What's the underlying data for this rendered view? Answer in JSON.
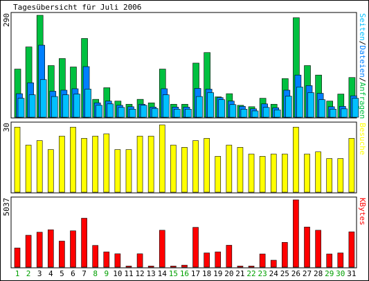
{
  "title": "Tagesübersicht für Juli 2006",
  "colors": {
    "hits": "#00c040",
    "files": "#0080ff",
    "pages": "#00c0ff",
    "visits": "#ffff00",
    "kbytes": "#ff0000",
    "weekday_label": "#008000",
    "weekend_label": "#00a000"
  },
  "chart_data": [
    {
      "type": "bar",
      "panel": "requests",
      "max_label": "290",
      "right_label_parts": [
        {
          "text": "Seiten",
          "series": "pages"
        },
        {
          "text": "/",
          "series": null
        },
        {
          "text": "Dateien",
          "series": "files"
        },
        {
          "text": "/",
          "series": null
        },
        {
          "text": "Anfragen",
          "series": "hits"
        }
      ],
      "ylim": [
        0,
        290
      ],
      "categories": [
        "1",
        "2",
        "3",
        "4",
        "5",
        "6",
        "7",
        "8",
        "9",
        "10",
        "11",
        "12",
        "13",
        "14",
        "15",
        "16",
        "17",
        "18",
        "19",
        "20",
        "21",
        "22",
        "23",
        "24",
        "25",
        "26",
        "27",
        "28",
        "29",
        "30",
        "31"
      ],
      "series": [
        {
          "name": "Anfragen",
          "key": "hits",
          "values": [
            137,
            200,
            290,
            147,
            167,
            143,
            224,
            51,
            84,
            46,
            37,
            51,
            41,
            137,
            37,
            37,
            154,
            184,
            58,
            67,
            34,
            30,
            54,
            37,
            110,
            283,
            147,
            120,
            46,
            66,
            113
          ]
        },
        {
          "name": "Dateien",
          "key": "files",
          "values": [
            67,
            98,
            205,
            74,
            77,
            81,
            144,
            41,
            46,
            34,
            30,
            37,
            29,
            81,
            29,
            29,
            82,
            80,
            56,
            46,
            31,
            24,
            38,
            27,
            77,
            120,
            90,
            68,
            30,
            31,
            61
          ]
        },
        {
          "name": "Seiten",
          "key": "pages",
          "values": [
            54,
            64,
            107,
            59,
            64,
            66,
            80,
            34,
            38,
            28,
            23,
            34,
            25,
            64,
            23,
            23,
            59,
            70,
            50,
            36,
            23,
            18,
            28,
            21,
            60,
            86,
            70,
            50,
            23,
            24,
            54
          ]
        }
      ]
    },
    {
      "type": "bar",
      "panel": "visits",
      "max_label": "30",
      "right_label": "Besuche",
      "ylim": [
        0,
        30
      ],
      "categories": [
        "1",
        "2",
        "3",
        "4",
        "5",
        "6",
        "7",
        "8",
        "9",
        "10",
        "11",
        "12",
        "13",
        "14",
        "15",
        "16",
        "17",
        "18",
        "19",
        "20",
        "21",
        "22",
        "23",
        "24",
        "25",
        "26",
        "27",
        "28",
        "29",
        "30",
        "31"
      ],
      "series": [
        {
          "name": "Besuche",
          "key": "visits",
          "values": [
            29,
            21,
            23,
            19,
            25,
            29,
            24,
            25,
            26,
            19,
            19,
            25,
            25,
            30,
            21,
            20,
            23,
            24,
            16,
            21,
            20,
            17,
            16,
            17,
            17,
            29,
            17,
            18,
            15,
            15,
            24
          ]
        }
      ]
    },
    {
      "type": "bar",
      "panel": "kbytes",
      "max_label": "5037",
      "right_label": "KBytes",
      "ylim": [
        0,
        5037
      ],
      "categories": [
        "1",
        "2",
        "3",
        "4",
        "5",
        "6",
        "7",
        "8",
        "9",
        "10",
        "11",
        "12",
        "13",
        "14",
        "15",
        "16",
        "17",
        "18",
        "19",
        "20",
        "21",
        "22",
        "23",
        "24",
        "25",
        "26",
        "27",
        "28",
        "29",
        "30",
        "31"
      ],
      "series": [
        {
          "name": "KBytes",
          "key": "kbytes",
          "values": [
            1431,
            2387,
            2614,
            2797,
            1948,
            2718,
            3661,
            1624,
            1140,
            998,
            44,
            998,
            44,
            2760,
            44,
            148,
            2977,
            1062,
            1140,
            1638,
            44,
            44,
            985,
            518,
            1852,
            5037,
            3002,
            2760,
            985,
            1062,
            2643
          ]
        }
      ]
    }
  ],
  "x_labels": [
    {
      "text": "1",
      "weekend": true
    },
    {
      "text": "2",
      "weekend": true
    },
    {
      "text": "3",
      "weekend": false
    },
    {
      "text": "4",
      "weekend": false
    },
    {
      "text": "5",
      "weekend": false
    },
    {
      "text": "6",
      "weekend": false
    },
    {
      "text": "7",
      "weekend": false
    },
    {
      "text": "8",
      "weekend": true
    },
    {
      "text": "9",
      "weekend": true
    },
    {
      "text": "10",
      "weekend": false
    },
    {
      "text": "11",
      "weekend": false
    },
    {
      "text": "12",
      "weekend": false
    },
    {
      "text": "13",
      "weekend": false
    },
    {
      "text": "14",
      "weekend": false
    },
    {
      "text": "15",
      "weekend": true
    },
    {
      "text": "16",
      "weekend": true
    },
    {
      "text": "17",
      "weekend": false
    },
    {
      "text": "18",
      "weekend": false
    },
    {
      "text": "19",
      "weekend": false
    },
    {
      "text": "20",
      "weekend": false
    },
    {
      "text": "21",
      "weekend": false
    },
    {
      "text": "22",
      "weekend": true
    },
    {
      "text": "23",
      "weekend": true
    },
    {
      "text": "24",
      "weekend": false
    },
    {
      "text": "25",
      "weekend": false
    },
    {
      "text": "26",
      "weekend": false
    },
    {
      "text": "27",
      "weekend": false
    },
    {
      "text": "28",
      "weekend": false
    },
    {
      "text": "29",
      "weekend": true
    },
    {
      "text": "30",
      "weekend": true
    },
    {
      "text": "31",
      "weekend": false
    }
  ]
}
